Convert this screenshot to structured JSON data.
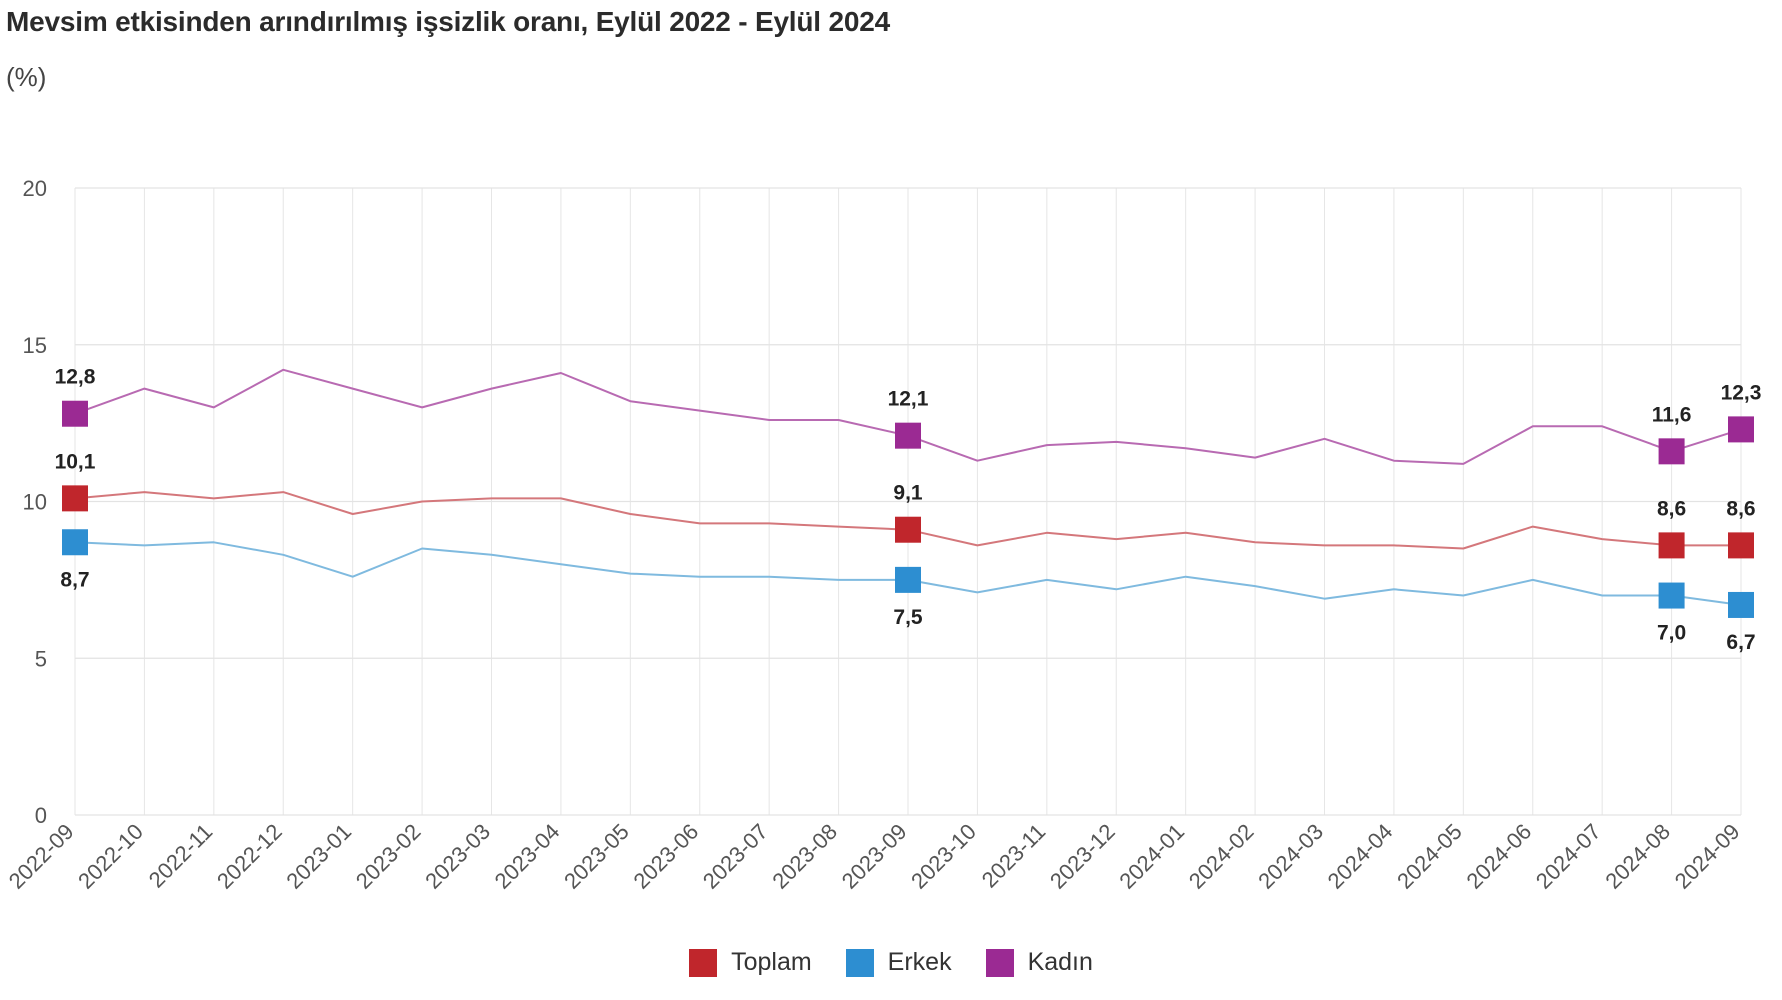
{
  "chart_data": {
    "type": "line",
    "title": "Mevsim etkisinden arındırılmış işsizlik oranı, Eylül 2022 - Eylül 2024",
    "unit": "(%)",
    "ylim": [
      0,
      20
    ],
    "yticks": [
      "0",
      "5",
      "10",
      "15",
      "20"
    ],
    "grid": true,
    "legend_position": "bottom-center",
    "categories": [
      "2022-09",
      "2022-10",
      "2022-11",
      "2022-12",
      "2023-01",
      "2023-02",
      "2023-03",
      "2023-04",
      "2023-05",
      "2023-06",
      "2023-07",
      "2023-08",
      "2023-09",
      "2023-10",
      "2023-11",
      "2023-12",
      "2024-01",
      "2024-02",
      "2024-03",
      "2024-04",
      "2024-05",
      "2024-06",
      "2024-07",
      "2024-08",
      "2024-09"
    ],
    "series": [
      {
        "name": "Toplam",
        "color": "#c0262c",
        "line_color": "#d4777b",
        "values": [
          10.1,
          10.3,
          10.1,
          10.3,
          9.6,
          10.0,
          10.1,
          10.1,
          9.6,
          9.3,
          9.3,
          9.2,
          9.1,
          8.6,
          9.0,
          8.8,
          9.0,
          8.7,
          8.6,
          8.6,
          8.5,
          9.2,
          8.8,
          8.6,
          8.6
        ],
        "labels": [
          {
            "index": 0,
            "text": "10,1",
            "pos": "above"
          },
          {
            "index": 12,
            "text": "9,1",
            "pos": "above"
          },
          {
            "index": 23,
            "text": "8,6",
            "pos": "above"
          },
          {
            "index": 24,
            "text": "8,6",
            "pos": "above"
          }
        ]
      },
      {
        "name": "Erkek",
        "color": "#2d8ed1",
        "line_color": "#7fbadf",
        "values": [
          8.7,
          8.6,
          8.7,
          8.3,
          7.6,
          8.5,
          8.3,
          8.0,
          7.7,
          7.6,
          7.6,
          7.5,
          7.5,
          7.1,
          7.5,
          7.2,
          7.6,
          7.3,
          6.9,
          7.2,
          7.0,
          7.5,
          7.0,
          7.0,
          6.7
        ],
        "labels": [
          {
            "index": 0,
            "text": "8,7",
            "pos": "below"
          },
          {
            "index": 12,
            "text": "7,5",
            "pos": "below"
          },
          {
            "index": 23,
            "text": "7,0",
            "pos": "below"
          },
          {
            "index": 24,
            "text": "6,7",
            "pos": "below"
          }
        ]
      },
      {
        "name": "Kadın",
        "color": "#9b2a93",
        "line_color": "#b86ab2",
        "values": [
          12.8,
          13.6,
          13.0,
          14.2,
          13.6,
          13.0,
          13.6,
          14.1,
          13.2,
          12.9,
          12.6,
          12.6,
          12.1,
          11.3,
          11.8,
          11.9,
          11.7,
          11.4,
          12.0,
          11.3,
          11.2,
          12.4,
          12.4,
          11.6,
          12.3
        ],
        "labels": [
          {
            "index": 0,
            "text": "12,8",
            "pos": "above"
          },
          {
            "index": 12,
            "text": "12,1",
            "pos": "above"
          },
          {
            "index": 23,
            "text": "11,6",
            "pos": "above"
          },
          {
            "index": 24,
            "text": "12,3",
            "pos": "above"
          }
        ]
      }
    ]
  }
}
